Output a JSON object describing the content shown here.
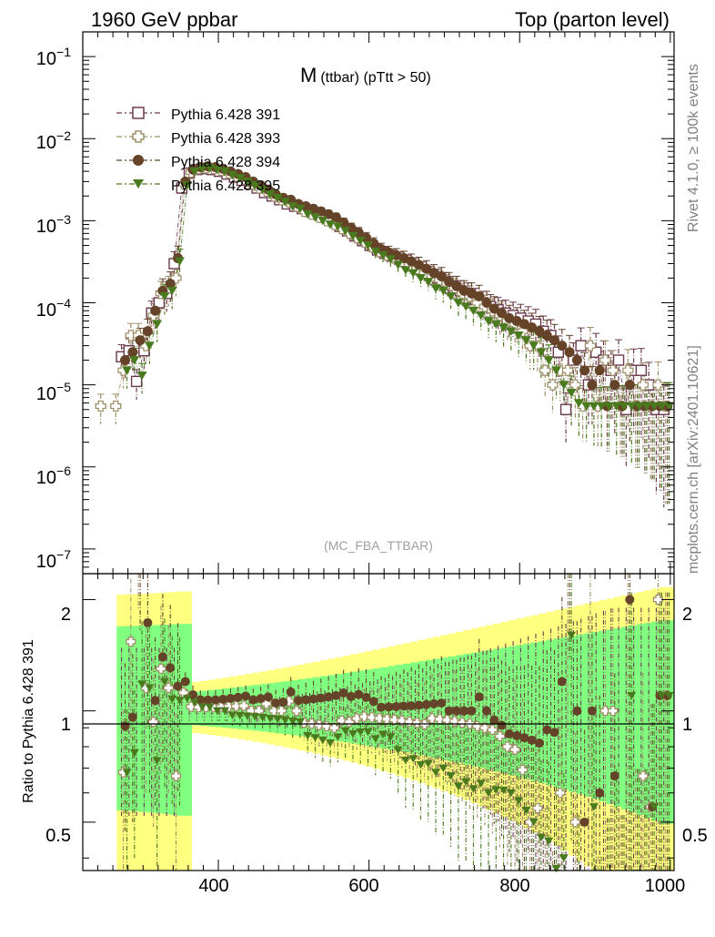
{
  "header": {
    "left": "1960 GeV ppbar",
    "right": "Top (parton level)"
  },
  "side_labels": {
    "rivet": "Rivet 4.1.0, ≥ 100k events",
    "mcplots": "mcplots.cern.ch [arXiv:2401.10621]"
  },
  "chart_data": {
    "type": "scatter",
    "title_main": "M",
    "title_sub": "(ttbar) (pTtt > 50)",
    "watermark": "(MC_FBA_TTBAR)",
    "xlim": [
      220,
      1005
    ],
    "ylim": [
      5e-08,
      0.2
    ],
    "yscale": "log",
    "xticks": [
      "400",
      "600",
      "800",
      "1000"
    ],
    "yticks": [
      "10^-1",
      "10^-2",
      "10^-3",
      "10^-4",
      "10^-5",
      "10^-6",
      "10^-7"
    ],
    "legend_position": "top-left",
    "x": [
      245,
      265,
      275,
      285,
      295,
      305,
      315,
      325,
      335,
      345,
      355,
      365,
      375,
      385,
      395,
      405,
      415,
      425,
      435,
      445,
      455,
      465,
      475,
      485,
      495,
      505,
      515,
      525,
      535,
      545,
      555,
      565,
      575,
      585,
      595,
      605,
      615,
      625,
      635,
      645,
      655,
      665,
      675,
      685,
      695,
      705,
      715,
      725,
      735,
      745,
      755,
      765,
      775,
      785,
      795,
      805,
      815,
      825,
      835,
      845,
      855,
      865,
      875,
      885,
      895,
      905,
      915,
      925,
      935,
      945,
      955,
      965,
      975,
      985,
      995
    ],
    "series": [
      {
        "name": "Pythia 6.428 391",
        "marker": "open-square",
        "color": "#6b3a4e",
        "values": [
          null,
          null,
          2.2e-05,
          2.6e-05,
          1.1e-05,
          2.6e-05,
          7.5e-05,
          0.0001,
          0.00013,
          0.0003,
          0.0025,
          0.0038,
          0.0042,
          0.0043,
          0.0042,
          0.004,
          0.0037,
          0.0034,
          0.0031,
          0.0028,
          0.0025,
          0.0022,
          0.002,
          0.0018,
          0.0016,
          0.0015,
          0.0014,
          0.0013,
          0.0012,
          0.0011,
          0.001,
          0.00085,
          0.00075,
          0.00065,
          0.00057,
          0.0005,
          0.00044,
          0.0004,
          0.00037,
          0.00034,
          0.00031,
          0.00028,
          0.00025,
          0.00022,
          0.0002,
          0.00018,
          0.00016,
          0.00014,
          0.00013,
          0.00011,
          0.0001,
          9e-05,
          8.2e-05,
          7.5e-05,
          7e-05,
          6.5e-05,
          6e-05,
          5.5e-05,
          4.5e-05,
          4e-05,
          2.5e-05,
          5e-06,
          2e-05,
          3e-05,
          1e-05,
          2.5e-05,
          2e-05,
          1.5e-05,
          2e-05,
          5e-06,
          1.5e-05,
          1.5e-05,
          1e-05,
          5e-06,
          5e-06
        ]
      },
      {
        "name": "Pythia 6.428 393",
        "marker": "open-cross",
        "color": "#a0906a",
        "values": [
          5.5e-06,
          5.5e-06,
          1.5e-05,
          4e-05,
          4e-05,
          3e-05,
          7e-05,
          0.00013,
          0.00015,
          0.0002,
          0.0028,
          0.0039,
          0.0043,
          0.0044,
          0.0043,
          0.0041,
          0.0038,
          0.0035,
          0.0032,
          0.0028,
          0.0025,
          0.0023,
          0.002,
          0.0018,
          0.0017,
          0.0015,
          0.0013,
          0.0012,
          0.0011,
          0.001,
          0.0009,
          0.0008,
          0.0007,
          0.00062,
          0.00055,
          0.00048,
          0.00042,
          0.00038,
          0.00035,
          0.00032,
          0.00029,
          0.00026,
          0.00023,
          0.00021,
          0.00019,
          0.00017,
          0.00015,
          0.00013,
          0.00012,
          0.0001,
          9e-05,
          8e-05,
          7e-05,
          6e-05,
          5.5e-05,
          4.5e-05,
          3e-05,
          3e-05,
          1.5e-05,
          1e-05,
          1.5e-05,
          1.5e-05,
          1e-05,
          5.5e-06,
          3e-05,
          5.5e-06,
          2e-05,
          1.5e-05,
          5.5e-06,
          1.5e-05,
          5.5e-06,
          1e-05,
          5.5e-06,
          1e-05,
          5.5e-06
        ]
      },
      {
        "name": "Pythia 6.428 394",
        "marker": "filled-circle",
        "color": "#654329",
        "values": [
          null,
          null,
          2e-05,
          2.5e-05,
          3.5e-05,
          4.5e-05,
          8e-05,
          0.00014,
          0.00017,
          0.00035,
          0.003,
          0.0042,
          0.0045,
          0.0046,
          0.0045,
          0.0043,
          0.004,
          0.0037,
          0.0034,
          0.003,
          0.0027,
          0.0024,
          0.0021,
          0.0019,
          0.0018,
          0.0016,
          0.0015,
          0.0014,
          0.0013,
          0.0012,
          0.0011,
          0.00095,
          0.00082,
          0.00072,
          0.00062,
          0.00053,
          0.00045,
          0.00041,
          0.00038,
          0.00035,
          0.00032,
          0.00029,
          0.00026,
          0.00023,
          0.00021,
          0.00018,
          0.00016,
          0.00014,
          0.00013,
          0.00012,
          0.0001,
          8.5e-05,
          7.5e-05,
          6.5e-05,
          6e-05,
          5.5e-05,
          5e-05,
          4.5e-05,
          4e-05,
          3.5e-05,
          3e-05,
          2.5e-05,
          2e-05,
          1.5e-05,
          1e-05,
          1.5e-05,
          5.5e-06,
          1e-05,
          5.5e-06,
          1e-05,
          5.5e-06,
          5.5e-06,
          5.5e-06,
          5.5e-06,
          5.5e-06
        ]
      },
      {
        "name": "Pythia 6.428 395",
        "marker": "filled-triangle-down",
        "color": "#4a7a1e",
        "values": [
          null,
          null,
          1.5e-05,
          2e-05,
          1.3e-05,
          3e-05,
          5.5e-05,
          0.00012,
          0.00014,
          0.00032,
          0.0027,
          0.004,
          0.0043,
          0.0044,
          0.0042,
          0.004,
          0.0036,
          0.0033,
          0.003,
          0.0027,
          0.0024,
          0.0021,
          0.0019,
          0.0017,
          0.0015,
          0.0014,
          0.0012,
          0.0011,
          0.001,
          0.0009,
          0.00085,
          0.00075,
          0.00065,
          0.00057,
          0.0005,
          0.00042,
          0.00038,
          0.00034,
          0.00029,
          0.00025,
          0.00023,
          0.0002,
          0.00018,
          0.00015,
          0.00014,
          0.00012,
          0.0001,
          9e-05,
          8e-05,
          7e-05,
          6e-05,
          5.5e-05,
          5e-05,
          4.5e-05,
          4e-05,
          3.5e-05,
          3e-05,
          2.5e-05,
          2e-05,
          1.5e-05,
          1e-05,
          8e-06,
          6e-06,
          5.5e-06,
          5.5e-06,
          5.5e-06,
          5.5e-06,
          5.5e-06,
          5.5e-06,
          5.5e-06,
          5.5e-06,
          5.5e-06,
          5.5e-06,
          5.5e-06,
          5.5e-06
        ]
      }
    ],
    "ratio": {
      "ylabel": "Ratio to Pythia 6.428 391",
      "ylim": [
        0.37,
        2.35
      ],
      "yticks": [
        "0.5",
        "1",
        "2"
      ],
      "band_outer_color": "#ffff80",
      "band_inner_color": "#80ff80",
      "reference_line": 1
    }
  }
}
